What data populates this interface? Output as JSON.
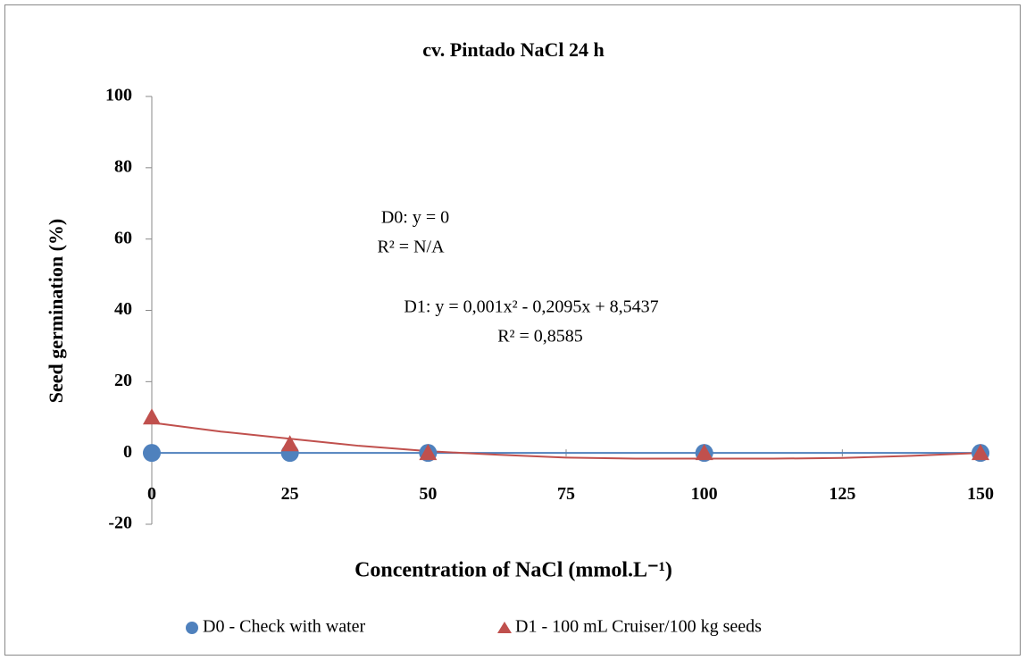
{
  "chart_data": {
    "type": "scatter",
    "title": "cv. Pintado  NaCl 24 h",
    "x_label": "Concentration of NaCl (mmol.L⁻¹)",
    "y_label": "Seed germination  (%)",
    "xlim": [
      0,
      150
    ],
    "xticks": [
      0,
      25,
      50,
      75,
      100,
      125,
      150
    ],
    "ylim": [
      -20,
      100
    ],
    "yticks": [
      -20,
      0,
      20,
      40,
      60,
      80,
      100
    ],
    "legend": "bottom",
    "annotations": [
      "D0: y = 0",
      "R² = N/A",
      "D1: y = 0,001x² - 0,2095x + 8,5437",
      "R² = 0,8585"
    ],
    "series": [
      {
        "name": "D0 - Check with water",
        "color": "#4f81bd",
        "marker": "circle",
        "x": [
          0,
          25,
          50,
          100,
          150
        ],
        "values": [
          0,
          0,
          0,
          0,
          0
        ],
        "trend_x": [
          0,
          150
        ],
        "trend_values": [
          0,
          0
        ]
      },
      {
        "name": "D1 - 100 mL Cruiser/100 kg seeds",
        "color": "#c0504d",
        "marker": "triangle",
        "x": [
          0,
          25,
          50,
          100,
          150
        ],
        "values": [
          10,
          2.5,
          0,
          0,
          0
        ],
        "trend_x": [
          0,
          12.5,
          25,
          37.5,
          50,
          62.5,
          75,
          87.5,
          100,
          112.5,
          125,
          137.5,
          150
        ],
        "trend_values": [
          8.5,
          6,
          4,
          2,
          0.5,
          -0.5,
          -1.3,
          -1.6,
          -1.6,
          -1.6,
          -1.4,
          -0.8,
          0
        ]
      }
    ]
  }
}
